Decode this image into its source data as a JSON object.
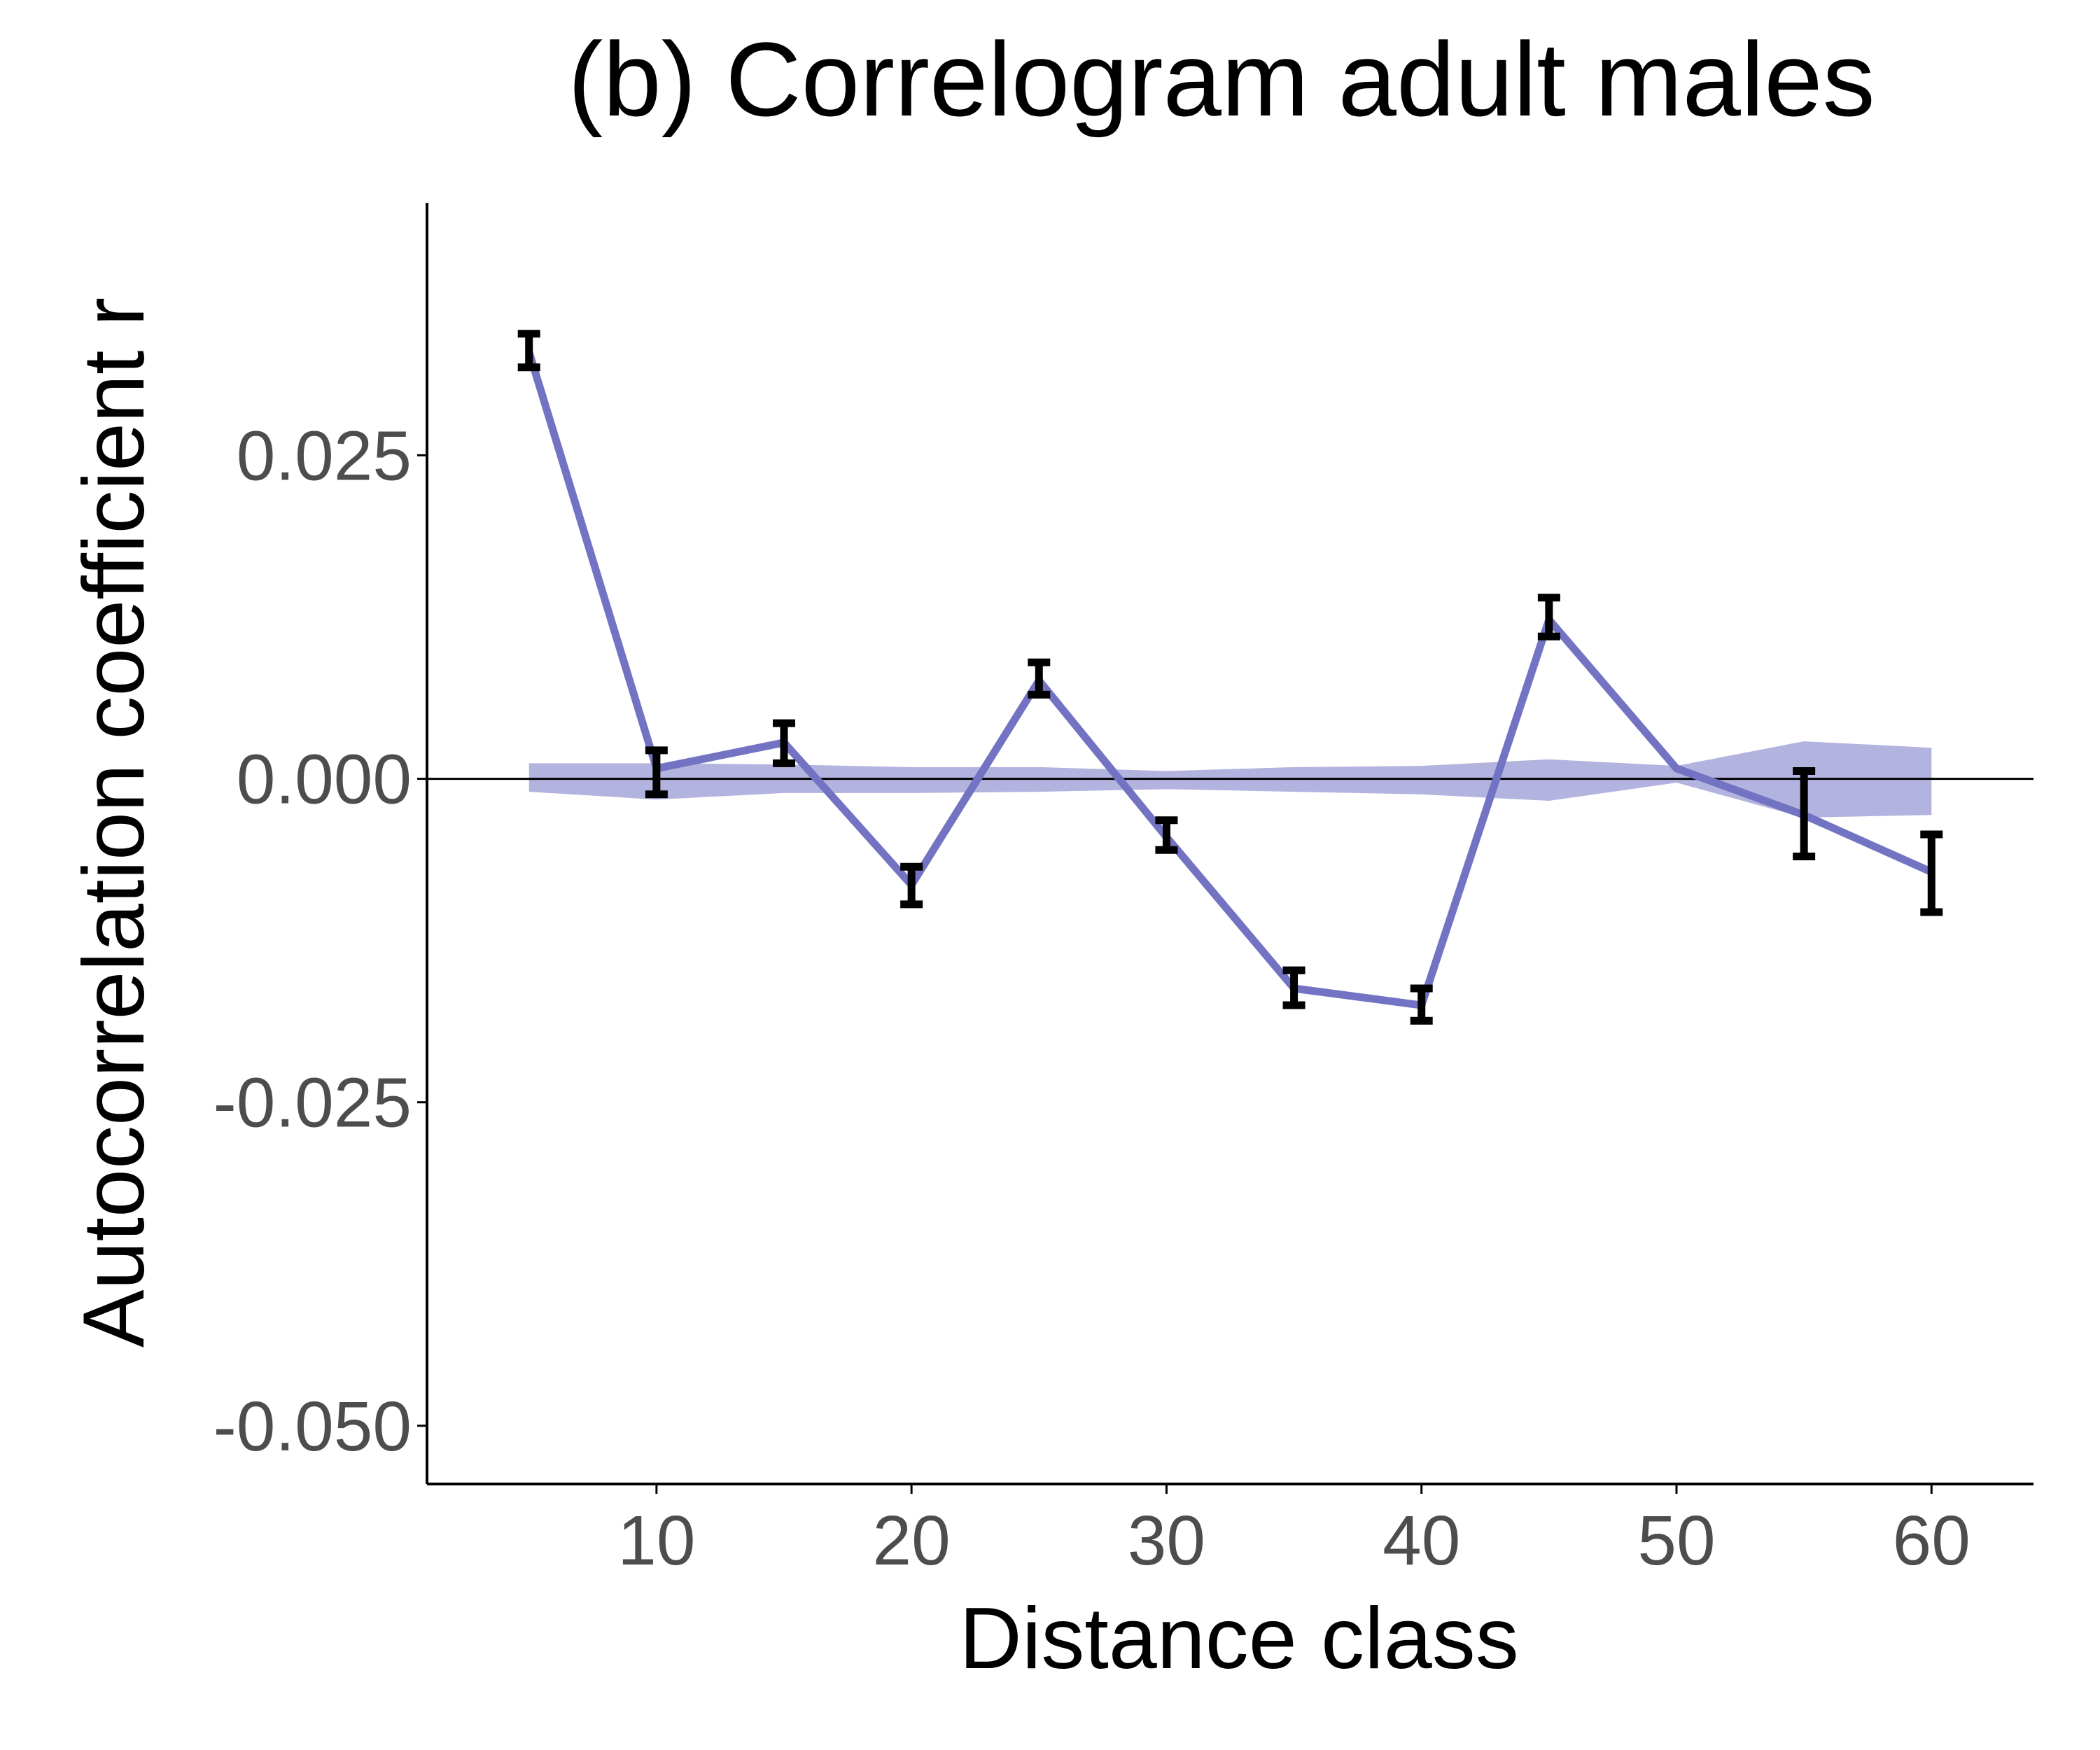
{
  "chart_data": {
    "type": "line",
    "title": "(b) Correlogram adult males",
    "xlabel": "Distance class",
    "ylabel": "Autocorrelation coefficient r",
    "xlim": [
      1,
      64
    ],
    "ylim": [
      -0.0545,
      0.0445
    ],
    "x_ticks": [
      10,
      20,
      30,
      40,
      50,
      60
    ],
    "x_tick_labels": [
      "10",
      "20",
      "30",
      "40",
      "50",
      "60"
    ],
    "y_ticks": [
      0.025,
      0.0,
      -0.025,
      -0.05
    ],
    "y_tick_labels": [
      "0.025",
      "0.000",
      "-0.025",
      "-0.050"
    ],
    "grid": false,
    "legend": "none",
    "reference_line": 0,
    "colors": {
      "line": "#7373c3",
      "band": "#b3b3df",
      "errorbar": "#000000"
    },
    "series": [
      {
        "x": [
          5,
          10,
          15,
          20,
          25,
          30,
          35,
          40,
          45,
          50,
          55,
          60
        ],
        "y": [
          0.033,
          0.0008,
          0.0028,
          -0.0082,
          0.0076,
          -0.0045,
          -0.0162,
          -0.0175,
          0.0123,
          0.0008,
          -0.0028,
          -0.0072
        ],
        "y_low": [
          0.0318,
          -0.0012,
          0.0012,
          -0.0097,
          0.0065,
          -0.0055,
          -0.0175,
          -0.0187,
          0.011,
          null,
          -0.006,
          -0.0103
        ],
        "y_high": [
          0.0344,
          0.0022,
          0.0043,
          -0.0068,
          0.009,
          -0.0032,
          -0.0148,
          -0.0162,
          0.014,
          null,
          0.0006,
          -0.0043
        ]
      }
    ],
    "null_envelope": {
      "x": [
        5,
        10,
        15,
        20,
        25,
        30,
        35,
        40,
        45,
        50,
        55,
        60
      ],
      "upper": [
        0.0012,
        0.0012,
        0.0011,
        0.0009,
        0.0009,
        0.0006,
        0.0009,
        0.001,
        0.0015,
        0.001,
        0.0029,
        0.0024
      ],
      "lower": [
        -0.001,
        -0.0016,
        -0.0011,
        -0.0011,
        -0.001,
        -0.0008,
        -0.001,
        -0.0012,
        -0.0017,
        -0.0003,
        -0.003,
        -0.0028
      ]
    }
  }
}
